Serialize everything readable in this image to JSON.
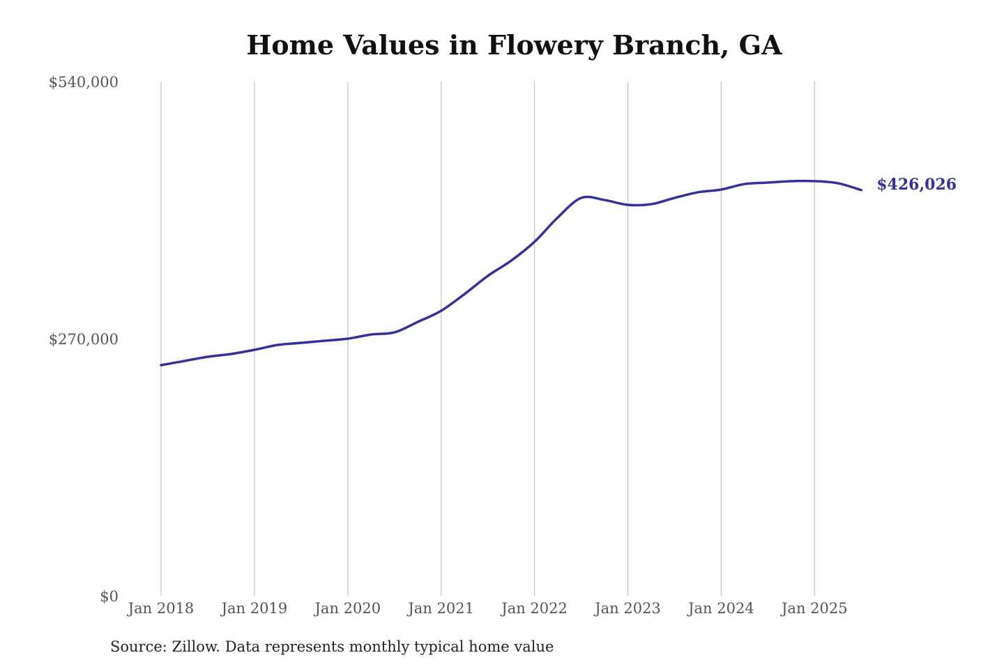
{
  "chart_data": {
    "type": "line",
    "title": "Home Values in Flowery Branch, GA",
    "source": "Source: Zillow. Data represents monthly typical home value",
    "xlabel": "",
    "ylabel": "",
    "ylim": [
      0,
      540000
    ],
    "y_ticks": [
      0,
      270000,
      540000
    ],
    "y_tick_labels": [
      "$0",
      "$270,000",
      "$540,000"
    ],
    "x_ticks": [
      "2018-01",
      "2019-01",
      "2020-01",
      "2021-01",
      "2022-01",
      "2023-01",
      "2024-01",
      "2025-01"
    ],
    "x_tick_labels": [
      "Jan 2018",
      "Jan 2019",
      "Jan 2020",
      "Jan 2021",
      "Jan 2022",
      "Jan 2023",
      "Jan 2024",
      "Jan 2025"
    ],
    "grid": "vertical",
    "line_color": "#35309a",
    "end_label": "$426,026",
    "series": [
      {
        "x": [
          "2018-01",
          "2018-04",
          "2018-07",
          "2018-10",
          "2019-01",
          "2019-04",
          "2019-07",
          "2019-10",
          "2020-01",
          "2020-04",
          "2020-07",
          "2020-10",
          "2021-01",
          "2021-04",
          "2021-07",
          "2021-10",
          "2022-01",
          "2022-04",
          "2022-07",
          "2022-10",
          "2023-01",
          "2023-04",
          "2023-07",
          "2023-10",
          "2024-01",
          "2024-04",
          "2024-07",
          "2024-10",
          "2025-01",
          "2025-04",
          "2025-07"
        ],
        "values": [
          242200,
          246600,
          251000,
          253900,
          258300,
          263400,
          265600,
          267800,
          270000,
          274400,
          276600,
          287600,
          299300,
          316800,
          335900,
          351900,
          371700,
          397300,
          417800,
          415600,
          410500,
          411200,
          417800,
          423700,
          426600,
          432400,
          433900,
          435400,
          435400,
          433200,
          426026
        ]
      }
    ]
  }
}
